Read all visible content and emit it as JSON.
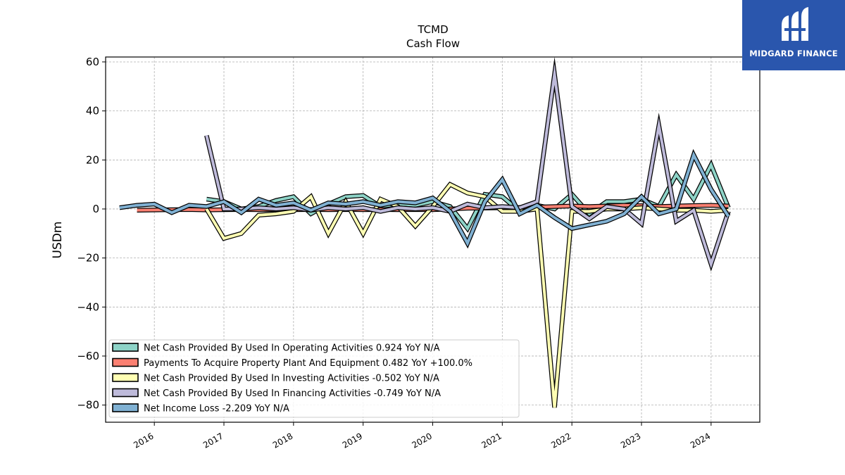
{
  "brand": {
    "name": "MIDGARD FINANCE",
    "bg_color": "#2a56ad",
    "icon": "midgard-logo-icon"
  },
  "chart_data": {
    "type": "line",
    "title": "TCMD",
    "subtitle": "Cash Flow",
    "xlabel": "",
    "ylabel": "USDm",
    "xlim": [
      2015.3,
      2024.7
    ],
    "ylim": [
      -87,
      62
    ],
    "x_ticks": [
      2016,
      2017,
      2018,
      2019,
      2020,
      2021,
      2022,
      2023,
      2024
    ],
    "x_tick_labels": [
      "2016",
      "2017",
      "2018",
      "2019",
      "2020",
      "2021",
      "2022",
      "2023",
      "2024"
    ],
    "y_ticks": [
      -80,
      -60,
      -40,
      -20,
      0,
      20,
      40,
      60
    ],
    "y_tick_labels": [
      "−80",
      "−60",
      "−40",
      "−20",
      "0",
      "20",
      "40",
      "60"
    ],
    "grid": true,
    "legend_position": "bottom-left",
    "series": [
      {
        "name": "Net Cash Provided By Used In Operating Activities  0.924 YoY N/A",
        "color": "#8dd3c7",
        "x": [
          2016.75,
          2017.0,
          2017.25,
          2017.5,
          2017.75,
          2018.0,
          2018.25,
          2018.5,
          2018.75,
          2019.0,
          2019.25,
          2019.5,
          2019.75,
          2020.0,
          2020.25,
          2020.5,
          2020.75,
          2021.0,
          2021.25,
          2021.5,
          2021.75,
          2022.0,
          2022.25,
          2022.5,
          2022.75,
          2023.0,
          2023.25,
          2023.5,
          2023.75,
          2024.0,
          2024.25
        ],
        "values": [
          4.0,
          3.0,
          0.0,
          1.0,
          3.5,
          5.0,
          -2.0,
          2.0,
          5.0,
          5.5,
          1.0,
          2.0,
          1.5,
          3.0,
          1.0,
          -8.0,
          6.0,
          5.0,
          -1.0,
          1.5,
          0.0,
          6.0,
          -2.0,
          3.0,
          3.0,
          4.0,
          1.0,
          14.0,
          4.0,
          18.0,
          0.5
        ]
      },
      {
        "name": "Payments To Acquire Property Plant And Equipment  0.482 YoY +100.0%",
        "color": "#fb8072",
        "x": [
          2015.75,
          2016.0,
          2016.25,
          2016.5,
          2016.75,
          2017.0,
          2017.25,
          2017.5,
          2017.75,
          2018.0,
          2018.25,
          2018.5,
          2018.75,
          2019.0,
          2019.25,
          2019.5,
          2019.75,
          2020.0,
          2020.25,
          2020.5,
          2020.75,
          2021.0,
          2021.25,
          2021.5,
          2021.75,
          2022.0,
          2022.25,
          2022.5,
          2022.75,
          2023.0,
          2023.25,
          2023.5,
          2023.75,
          2024.0,
          2024.25
        ],
        "values": [
          -0.5,
          -0.4,
          -0.3,
          -0.2,
          -0.4,
          -0.3,
          -0.2,
          -0.3,
          -0.2,
          -0.3,
          -0.2,
          -0.3,
          -0.2,
          -0.3,
          -0.2,
          -0.3,
          -0.2,
          -0.3,
          0.0,
          0.3,
          0.4,
          0.5,
          0.6,
          0.8,
          1.0,
          1.2,
          1.0,
          1.2,
          1.5,
          1.3,
          1.0,
          1.2,
          1.4,
          1.5,
          1.2
        ]
      },
      {
        "name": "Net Cash Provided By Used In Investing Activities  -0.502 YoY N/A",
        "color": "#ffffb3",
        "x": [
          2016.75,
          2017.0,
          2017.25,
          2017.5,
          2017.75,
          2018.0,
          2018.25,
          2018.5,
          2018.75,
          2019.0,
          2019.25,
          2019.5,
          2019.75,
          2020.0,
          2020.25,
          2020.5,
          2020.75,
          2021.0,
          2021.25,
          2021.5,
          2021.75,
          2022.0,
          2022.25,
          2022.5,
          2022.75,
          2023.0,
          2023.25,
          2023.5,
          2023.75,
          2024.0,
          2024.25
        ],
        "values": [
          0.0,
          -12.0,
          -10.0,
          -2.5,
          -2.0,
          -1.0,
          5.0,
          -10.0,
          3.0,
          -10.0,
          4.0,
          1.0,
          -7.0,
          1.0,
          10.0,
          6.5,
          5.0,
          -1.0,
          -1.0,
          0.0,
          -81.0,
          -1.0,
          -1.0,
          0.0,
          0.0,
          0.5,
          0.0,
          -0.5,
          -0.5,
          -1.0,
          -0.5
        ]
      },
      {
        "name": "Net Cash Provided By Used In Financing Activities  -0.749 YoY N/A",
        "color": "#bebada",
        "x": [
          2016.75,
          2017.0,
          2017.25,
          2017.5,
          2017.75,
          2018.0,
          2018.25,
          2018.5,
          2018.75,
          2019.0,
          2019.25,
          2019.5,
          2019.75,
          2020.0,
          2020.25,
          2020.5,
          2020.75,
          2021.0,
          2021.25,
          2021.5,
          2021.75,
          2022.0,
          2022.25,
          2022.5,
          2022.75,
          2023.0,
          2023.25,
          2023.5,
          2023.75,
          2024.0,
          2024.25
        ],
        "values": [
          30.0,
          0.0,
          0.0,
          0.5,
          0.0,
          0.5,
          -0.5,
          0.5,
          0.0,
          0.5,
          -1.0,
          0.5,
          0.0,
          0.5,
          -1.0,
          2.0,
          0.5,
          1.0,
          0.5,
          3.0,
          55.0,
          1.0,
          -4.0,
          1.0,
          0.0,
          -6.0,
          34.0,
          -5.0,
          -0.5,
          -22.5,
          -1.0
        ]
      },
      {
        "name": "Net Income Loss  -2.209 YoY N/A",
        "color": "#80b1d3",
        "x": [
          2015.5,
          2015.75,
          2016.0,
          2016.25,
          2016.5,
          2016.75,
          2017.0,
          2017.25,
          2017.5,
          2017.75,
          2018.0,
          2018.25,
          2018.5,
          2018.75,
          2019.0,
          2019.25,
          2019.5,
          2019.75,
          2020.0,
          2020.25,
          2020.5,
          2020.75,
          2021.0,
          2021.25,
          2021.5,
          2021.75,
          2022.0,
          2022.25,
          2022.5,
          2022.75,
          2023.0,
          2023.25,
          2023.5,
          2023.75,
          2024.0,
          2024.25
        ],
        "values": [
          0.5,
          1.5,
          2.0,
          -1.5,
          1.5,
          1.0,
          3.0,
          -1.5,
          4.0,
          1.5,
          2.5,
          -0.5,
          2.5,
          2.0,
          3.0,
          1.5,
          3.0,
          2.5,
          4.5,
          -1.0,
          -14.0,
          3.0,
          12.0,
          -2.0,
          1.5,
          -3.5,
          -8.0,
          -6.5,
          -5.0,
          -2.0,
          5.0,
          -2.0,
          0.0,
          22.0,
          8.0,
          -3.0
        ]
      }
    ]
  }
}
